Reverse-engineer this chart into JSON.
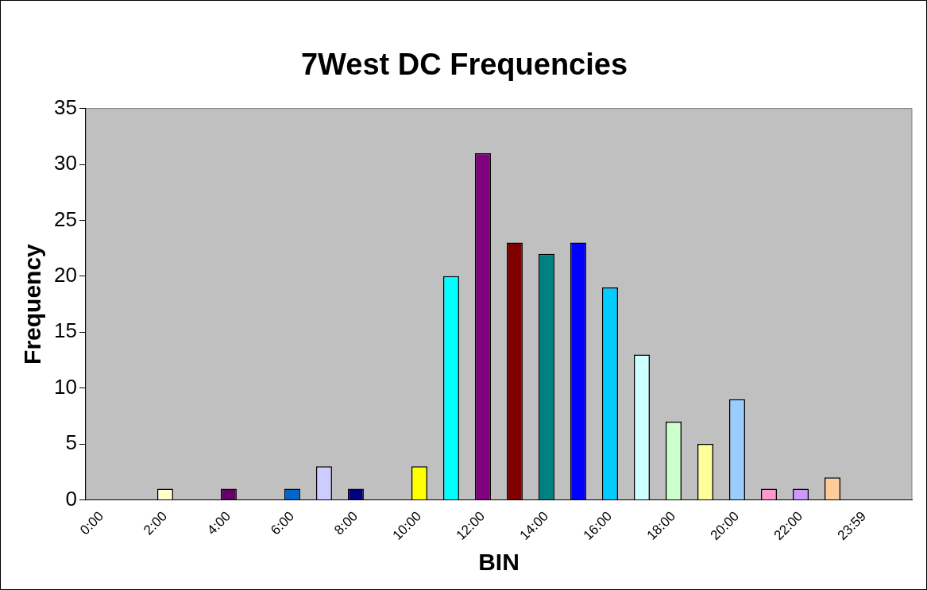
{
  "chart_data": {
    "type": "bar",
    "title": "7West DC Frequencies",
    "xlabel": "BIN",
    "ylabel": "Frequency",
    "categories": [
      "0:00",
      null,
      "2:00",
      null,
      "4:00",
      null,
      "6:00",
      null,
      "8:00",
      null,
      "10:00",
      null,
      "12:00",
      null,
      "14:00",
      null,
      "16:00",
      null,
      "18:00",
      null,
      "20:00",
      null,
      "22:00",
      null,
      "23:59",
      null
    ],
    "values": [
      0,
      0,
      1,
      0,
      1,
      0,
      1,
      3,
      1,
      0,
      3,
      20,
      31,
      23,
      22,
      23,
      19,
      13,
      7,
      5,
      9,
      1,
      1,
      2,
      0,
      0
    ],
    "colors": [
      "#9999ff",
      "#993366",
      "#ffffcc",
      "#ccffff",
      "#660066",
      "#ff8080",
      "#0066cc",
      "#ccccff",
      "#000080",
      "#ff00ff",
      "#ffff00",
      "#00ffff",
      "#800080",
      "#800000",
      "#008080",
      "#0000ff",
      "#00ccff",
      "#ccffff",
      "#ccffcc",
      "#ffff99",
      "#99ccff",
      "#ff99cc",
      "#cc99ff",
      "#ffcc99",
      "#3366ff",
      "#33cccc"
    ],
    "ylim": [
      0,
      35
    ],
    "yticks": [
      0,
      5,
      10,
      15,
      20,
      25,
      30,
      35
    ],
    "grid": false,
    "legend": false
  }
}
